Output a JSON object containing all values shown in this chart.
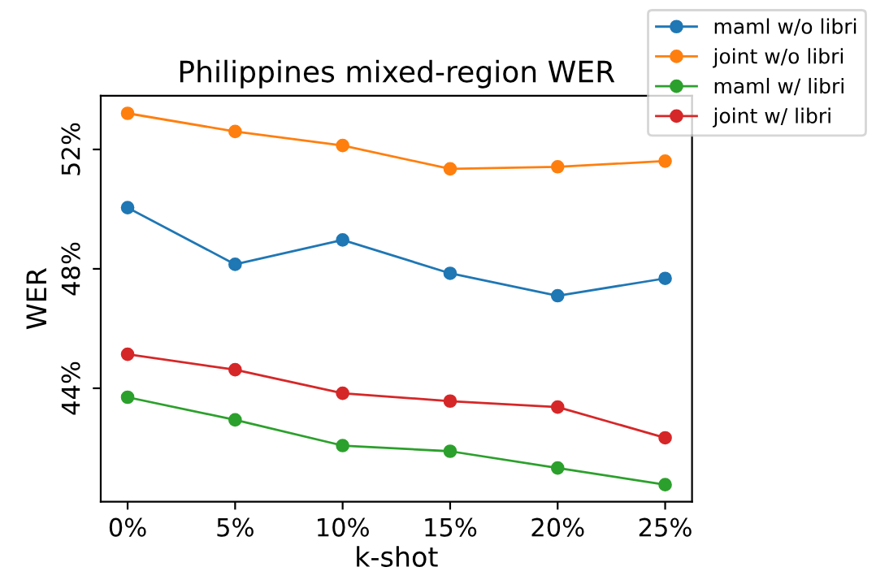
{
  "chart_data": {
    "type": "line",
    "title": "Philippines mixed-region WER",
    "xlabel": "k-shot",
    "ylabel": "WER",
    "categories": [
      "0%",
      "5%",
      "10%",
      "15%",
      "20%",
      "25%"
    ],
    "ylim": [
      40.2,
      53.8
    ],
    "yticks": [
      {
        "value": 44,
        "label": "44%"
      },
      {
        "value": 48,
        "label": "48%"
      },
      {
        "value": 52,
        "label": "52%"
      }
    ],
    "grid": false,
    "legend": "top right",
    "marker": "circle",
    "line_style": "solid",
    "series": [
      {
        "name": "maml w/o libri",
        "color": "#1f77b4",
        "values": [
          50.05,
          48.15,
          48.97,
          47.85,
          47.1,
          47.68
        ]
      },
      {
        "name": "joint w/o libri",
        "color": "#ff7f0e",
        "values": [
          53.21,
          52.6,
          52.13,
          51.35,
          51.42,
          51.61
        ]
      },
      {
        "name": "maml w/ libri",
        "color": "#2ca02c",
        "values": [
          43.7,
          42.94,
          42.08,
          41.89,
          41.33,
          40.77
        ]
      },
      {
        "name": "joint w/ libri",
        "color": "#d62728",
        "values": [
          45.14,
          44.62,
          43.83,
          43.57,
          43.37,
          42.34
        ]
      }
    ]
  }
}
